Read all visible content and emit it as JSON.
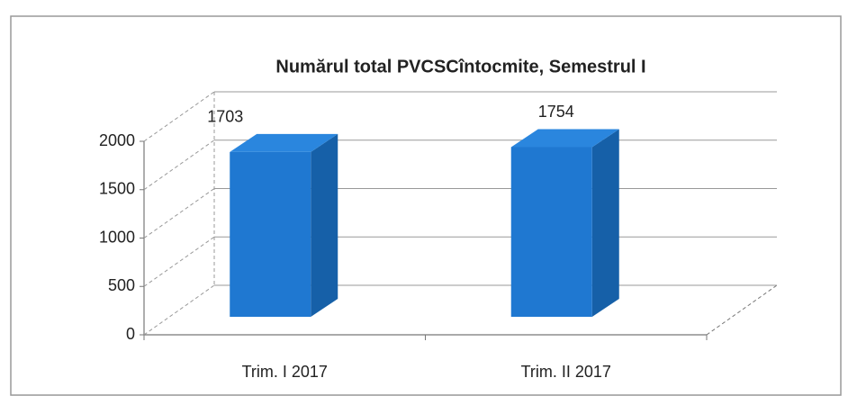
{
  "chart_data": {
    "type": "bar3d",
    "title": "Numărul total PVCSCîntocmite, Semestrul I",
    "categories": [
      "Trim. I 2017",
      "Trim. II 2017"
    ],
    "values": [
      1703,
      1754
    ],
    "color": "#1f78d1",
    "ylim": [
      0,
      2000
    ],
    "yticks": [
      0,
      500,
      1000,
      1500,
      2000
    ],
    "grid": true
  }
}
